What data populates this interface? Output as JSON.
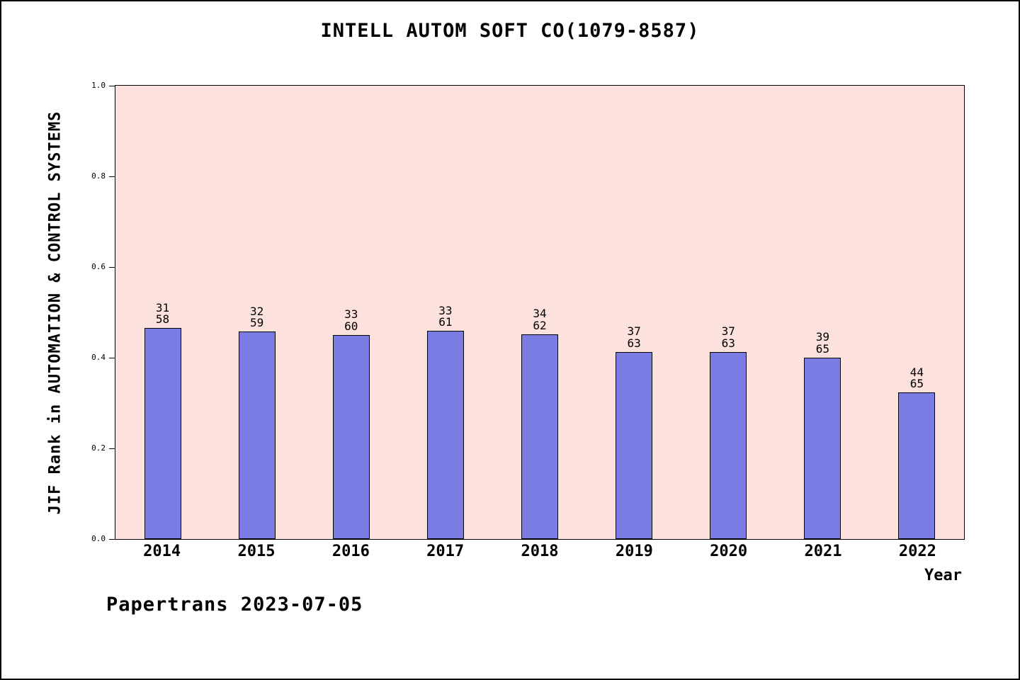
{
  "title": "INTELL AUTOM SOFT CO(1079-8587)",
  "footer": "Papertrans 2023-07-05",
  "chart_data": {
    "type": "bar",
    "title": "INTELL AUTOM SOFT CO(1079-8587)",
    "xlabel": "Year",
    "ylabel": "JIF Rank in AUTOMATION & CONTROL SYSTEMS",
    "ylim": [
      0.0,
      1.0
    ],
    "yticks": [
      "0.0",
      "0.2",
      "0.4",
      "0.6",
      "0.8",
      "1.0"
    ],
    "ytick_values": [
      0.0,
      0.2,
      0.4,
      0.6,
      0.8,
      1.0
    ],
    "grid": false,
    "legend": "none",
    "plot_bg_color": "#fce1dd",
    "bar_color": "#7b7be4",
    "bar_edge_color": "#000000",
    "categories": [
      "2014",
      "2015",
      "2016",
      "2017",
      "2018",
      "2019",
      "2020",
      "2021",
      "2022"
    ],
    "bars": [
      {
        "year": "2014",
        "rank": "31",
        "total": "58",
        "value": 0.4655
      },
      {
        "year": "2015",
        "rank": "32",
        "total": "59",
        "value": 0.4576
      },
      {
        "year": "2016",
        "rank": "33",
        "total": "60",
        "value": 0.45
      },
      {
        "year": "2017",
        "rank": "33",
        "total": "61",
        "value": 0.459
      },
      {
        "year": "2018",
        "rank": "34",
        "total": "62",
        "value": 0.4516
      },
      {
        "year": "2019",
        "rank": "37",
        "total": "63",
        "value": 0.4127
      },
      {
        "year": "2020",
        "rank": "37",
        "total": "63",
        "value": 0.4127
      },
      {
        "year": "2021",
        "rank": "39",
        "total": "65",
        "value": 0.4
      },
      {
        "year": "2022",
        "rank": "44",
        "total": "65",
        "value": 0.3231
      }
    ]
  }
}
